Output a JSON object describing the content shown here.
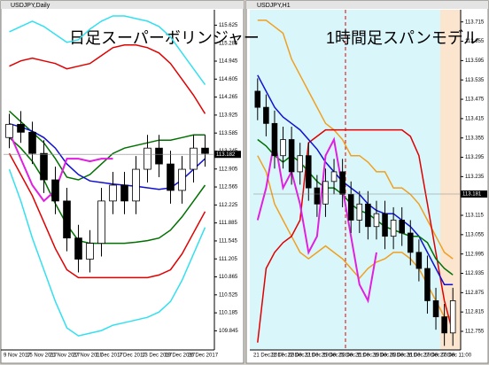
{
  "chart_data": [
    {
      "type": "line",
      "window_title": "USDJPY,Daily",
      "title": "日足スーパーボリンジャー",
      "last_price": 113.182,
      "ylim": [
        109.5,
        115.9
      ],
      "yticks": [
        109.845,
        110.185,
        110.525,
        110.865,
        111.205,
        111.545,
        111.885,
        112.225,
        112.565,
        112.905,
        113.245,
        113.585,
        113.925,
        114.265,
        114.605,
        114.945,
        115.285,
        115.625
      ],
      "categories": [
        "9 Nov 2017",
        null,
        "15 Nov 2017",
        null,
        "21 Nov 2017",
        null,
        "27 Nov 2017",
        null,
        "1 Dec 2017",
        null,
        "7 Dec 2017",
        null,
        "13 Dec 2017",
        null,
        "19 Dec 2017",
        null,
        "26 Dec 2017",
        null
      ],
      "candles": {
        "open": [
          113.5,
          113.75,
          113.6,
          113.2,
          112.7,
          112.3,
          111.6,
          111.2,
          111.5,
          112.3,
          112.6,
          112.3,
          112.9,
          113.3,
          113.0,
          112.5,
          112.9,
          113.3
        ],
        "high": [
          113.95,
          114.0,
          113.8,
          113.45,
          112.95,
          112.55,
          111.85,
          111.75,
          112.55,
          112.85,
          112.85,
          113.15,
          113.55,
          113.55,
          113.25,
          113.15,
          113.55,
          113.55
        ],
        "low": [
          113.3,
          113.4,
          113.0,
          112.45,
          112.05,
          111.35,
          110.95,
          110.95,
          111.25,
          112.05,
          112.05,
          112.05,
          112.65,
          112.75,
          112.25,
          112.25,
          112.65,
          112.95
        ],
        "close": [
          113.75,
          113.6,
          113.2,
          112.7,
          112.3,
          111.6,
          111.2,
          111.5,
          112.3,
          112.6,
          112.3,
          112.9,
          113.3,
          113.0,
          112.5,
          112.9,
          113.3,
          113.2
        ]
      },
      "series": [
        {
          "color": "#33e0f0",
          "values": [
            115.5,
            115.6,
            115.7,
            115.6,
            115.45,
            115.3,
            115.35,
            115.55,
            115.7,
            115.8,
            115.8,
            115.75,
            115.7,
            115.6,
            115.4,
            115.1,
            114.8,
            114.5
          ]
        },
        {
          "color": "#e00000",
          "values": [
            114.85,
            114.95,
            115.0,
            114.95,
            114.9,
            114.8,
            114.85,
            114.9,
            115.05,
            115.2,
            115.25,
            115.25,
            115.2,
            115.1,
            114.9,
            114.6,
            114.3,
            113.95
          ]
        },
        {
          "color": "#007000",
          "values": [
            114.0,
            113.8,
            113.6,
            113.4,
            113.1,
            112.75,
            112.7,
            112.8,
            113.0,
            113.2,
            113.3,
            113.35,
            113.4,
            113.45,
            113.45,
            113.5,
            113.55,
            113.55
          ]
        },
        {
          "color": "#1010d0",
          "values": [
            113.76,
            113.7,
            113.62,
            113.5,
            113.3,
            113.0,
            112.8,
            112.68,
            112.65,
            112.62,
            112.6,
            112.58,
            112.55,
            112.52,
            112.55,
            112.7,
            112.9,
            113.1
          ]
        },
        {
          "color": "#007000",
          "values": [
            113.5,
            113.3,
            113.05,
            112.7,
            112.25,
            111.85,
            111.55,
            111.5,
            111.5,
            111.5,
            111.5,
            111.52,
            111.55,
            111.6,
            111.75,
            112.0,
            112.3,
            112.6
          ]
        },
        {
          "color": "#e00000",
          "values": [
            113.2,
            112.8,
            112.4,
            111.9,
            111.4,
            111.0,
            110.85,
            110.85,
            110.85,
            110.85,
            110.85,
            110.85,
            110.85,
            110.9,
            111.0,
            111.3,
            111.7,
            112.1
          ]
        },
        {
          "color": "#33e0f0",
          "values": [
            112.9,
            112.3,
            111.6,
            111.0,
            110.4,
            109.9,
            109.75,
            109.8,
            109.85,
            109.95,
            110.0,
            110.05,
            110.1,
            110.2,
            110.4,
            110.8,
            111.3,
            111.8
          ]
        },
        {
          "color": "#e020e0",
          "values": [
            113.6,
            113.1,
            112.6,
            112.3,
            112.5,
            113.1,
            113.1,
            113.05,
            113.1,
            113.1,
            null,
            null,
            null,
            null,
            null,
            null,
            null,
            null
          ]
        }
      ]
    },
    {
      "type": "line",
      "window_title": "USDJPY,H1",
      "title": "1時間足スパンモデル",
      "last_price": 113.181,
      "ylim": [
        112.7,
        113.75
      ],
      "yticks": [
        112.755,
        112.815,
        112.875,
        112.935,
        112.995,
        113.055,
        113.115,
        113.175,
        113.235,
        113.295,
        113.355,
        113.415,
        113.475,
        113.535,
        113.595,
        113.655,
        113.715
      ],
      "categories": [
        "21 Dec 2017",
        null,
        "22 Dec 03:00",
        null,
        "22 Dec 11:00",
        null,
        "22 Dec 19:00",
        null,
        "25 Dec 03:00",
        null,
        "25 Dec 11:00",
        null,
        "25 Dec 19:00",
        null,
        "26 Dec 03:00",
        null,
        "26 Dec 11:00",
        null,
        "26 Dec 19:00",
        null,
        "27 Dec 03:00",
        null,
        "27 Dec 11:00",
        null
      ],
      "candles": {
        "open": [
          113.5,
          113.45,
          113.4,
          113.3,
          113.35,
          113.25,
          113.3,
          113.2,
          113.15,
          113.22,
          113.25,
          113.18,
          113.1,
          113.15,
          113.08,
          113.12,
          113.05,
          113.1,
          113.06,
          113.0,
          112.95,
          112.85,
          112.8,
          112.75
        ],
        "high": [
          113.54,
          113.49,
          113.44,
          113.39,
          113.39,
          113.34,
          113.34,
          113.24,
          113.26,
          113.29,
          113.29,
          113.22,
          113.19,
          113.19,
          113.16,
          113.16,
          113.14,
          113.14,
          113.1,
          113.04,
          112.99,
          112.89,
          112.84,
          112.89
        ],
        "low": [
          113.41,
          113.36,
          113.26,
          113.26,
          113.21,
          113.21,
          113.16,
          113.11,
          113.11,
          113.18,
          113.14,
          113.06,
          113.06,
          113.04,
          113.04,
          113.01,
          113.01,
          113.02,
          112.96,
          112.91,
          112.81,
          112.76,
          112.71,
          112.71
        ],
        "close": [
          113.45,
          113.4,
          113.3,
          113.35,
          113.25,
          113.3,
          113.2,
          113.15,
          113.22,
          113.25,
          113.18,
          113.1,
          113.15,
          113.08,
          113.12,
          113.05,
          113.1,
          113.06,
          113.0,
          112.95,
          112.85,
          112.8,
          112.75,
          112.85
        ]
      },
      "series": [
        {
          "color": "#f0a020",
          "values": [
            113.72,
            113.72,
            113.7,
            113.68,
            113.6,
            113.55,
            113.5,
            113.45,
            113.4,
            113.38,
            113.35,
            113.3,
            113.3,
            113.28,
            113.25,
            113.25,
            113.2,
            113.2,
            113.18,
            113.15,
            113.1,
            113.05,
            113.0,
            112.98
          ]
        },
        {
          "color": "#f0a020",
          "values": [
            113.3,
            113.25,
            113.15,
            113.1,
            113.05,
            113.0,
            112.98,
            113.0,
            113.02,
            113.0,
            112.98,
            112.95,
            112.92,
            112.95,
            112.97,
            112.98,
            113.0,
            113.0,
            112.98,
            112.95,
            112.9,
            112.85,
            112.8,
            112.8
          ]
        },
        {
          "color": "#e00000",
          "values": [
            112.72,
            112.95,
            113.0,
            113.03,
            113.05,
            113.1,
            113.34,
            113.36,
            113.38,
            113.38,
            113.38,
            113.38,
            113.38,
            113.38,
            113.38,
            113.38,
            113.38,
            113.38,
            113.36,
            113.3,
            113.15,
            113.0,
            112.85,
            112.75
          ]
        },
        {
          "color": "#1010d0",
          "values": [
            113.55,
            113.5,
            113.45,
            113.42,
            113.4,
            113.38,
            113.35,
            113.32,
            113.28,
            113.25,
            113.22,
            113.2,
            113.18,
            113.15,
            113.13,
            113.12,
            113.12,
            113.1,
            113.08,
            113.05,
            113.0,
            112.95,
            112.9,
            112.9
          ]
        },
        {
          "color": "#007000",
          "values": [
            113.35,
            113.33,
            113.3,
            113.28,
            113.3,
            113.28,
            113.25,
            113.22,
            113.2,
            113.2,
            113.18,
            113.15,
            113.13,
            113.12,
            113.1,
            113.08,
            113.07,
            113.06,
            113.05,
            113.05,
            113.03,
            112.98,
            112.95,
            112.93
          ]
        },
        {
          "color": "#e020e0",
          "values": [
            113.1,
            113.2,
            113.35,
            113.2,
            113.25,
            113.15,
            113.0,
            113.05,
            113.3,
            113.35,
            113.2,
            113.05,
            112.9,
            112.85,
            113.0,
            null,
            null,
            null,
            null,
            null,
            null,
            null,
            null,
            null
          ]
        }
      ]
    }
  ]
}
